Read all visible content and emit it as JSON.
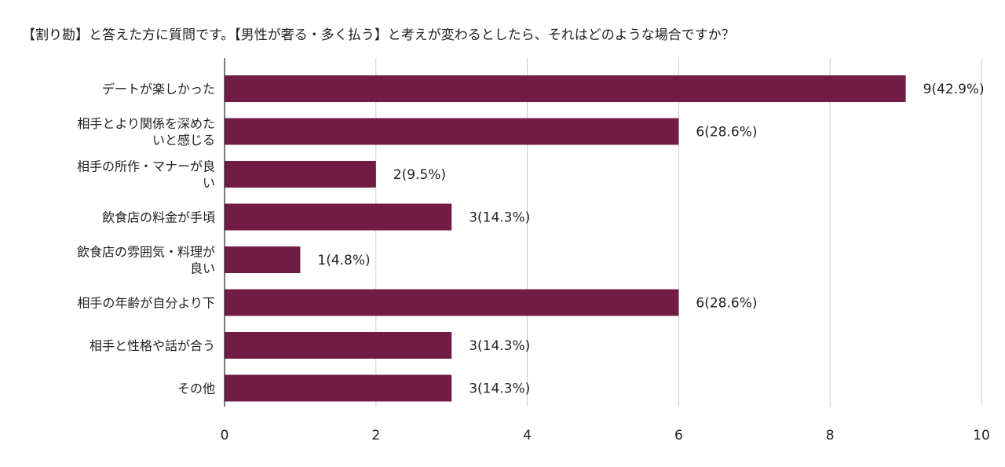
{
  "chart_data": {
    "type": "bar",
    "orientation": "horizontal",
    "title": "【割り勘】と答えた方に質問です。【男性が奢る・多く払う】と考えが変わるとしたら、それはどのような場合ですか？",
    "categories": [
      [
        "デートが楽しかった"
      ],
      [
        "相手とより関係を深めた",
        "いと感じる"
      ],
      [
        "相手の所作・マナーが良",
        "い"
      ],
      [
        "飲食店の料金が手頃"
      ],
      [
        "飲食店の雰囲気・料理が",
        "良い"
      ],
      [
        "相手の年齢が自分より下"
      ],
      [
        "相手と性格や話が合う"
      ],
      [
        "その他"
      ]
    ],
    "values": [
      9,
      6,
      2,
      3,
      1,
      6,
      3,
      3
    ],
    "data_labels": [
      "9(42.9%)",
      "6(28.6%)",
      "2(9.5%)",
      "3(14.3%)",
      "1(4.8%)",
      "6(28.6%)",
      "3(14.3%)",
      "3(14.3%)"
    ],
    "xlim": [
      0,
      10
    ],
    "xticks": [
      0,
      2,
      4,
      6,
      8,
      10
    ],
    "grid": true,
    "legend": "none",
    "bar_color": "#721c45"
  }
}
